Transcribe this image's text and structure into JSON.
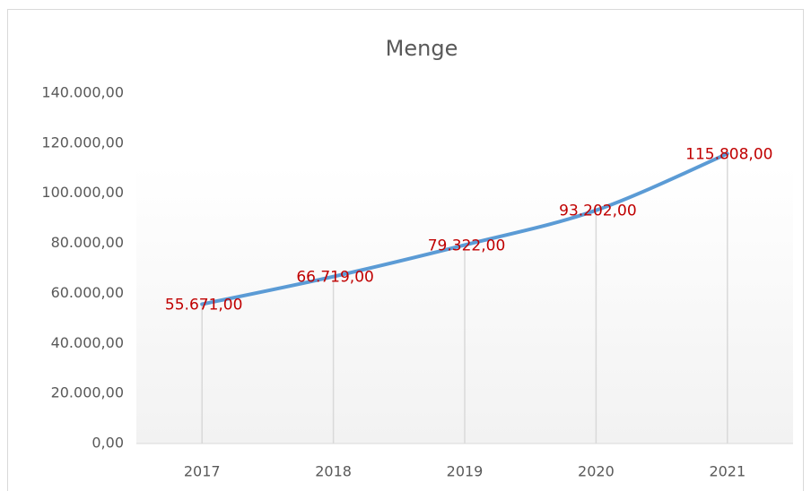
{
  "chart_data": {
    "type": "line",
    "title": "Menge",
    "categories": [
      "2017",
      "2018",
      "2019",
      "2020",
      "2021"
    ],
    "series": [
      {
        "name": "Menge",
        "color": "#5b9bd5",
        "values": [
          55671,
          66719,
          79322,
          93202,
          115808
        ],
        "value_labels": [
          "55.671,00",
          "66.719,00",
          "79.322,00",
          "93.202,00",
          "115.808,00"
        ],
        "label_color": "#c00000"
      }
    ],
    "ylim": [
      0,
      140000
    ],
    "yticks": [
      {
        "value": 0,
        "label": "0,00"
      },
      {
        "value": 20000,
        "label": "20.000,00"
      },
      {
        "value": 40000,
        "label": "40.000,00"
      },
      {
        "value": 60000,
        "label": "60.000,00"
      },
      {
        "value": 80000,
        "label": "80.000,00"
      },
      {
        "value": 100000,
        "label": "100.000,00"
      },
      {
        "value": 120000,
        "label": "120.000,00"
      },
      {
        "value": 140000,
        "label": "140.000,00"
      }
    ],
    "drop_lines": true
  }
}
